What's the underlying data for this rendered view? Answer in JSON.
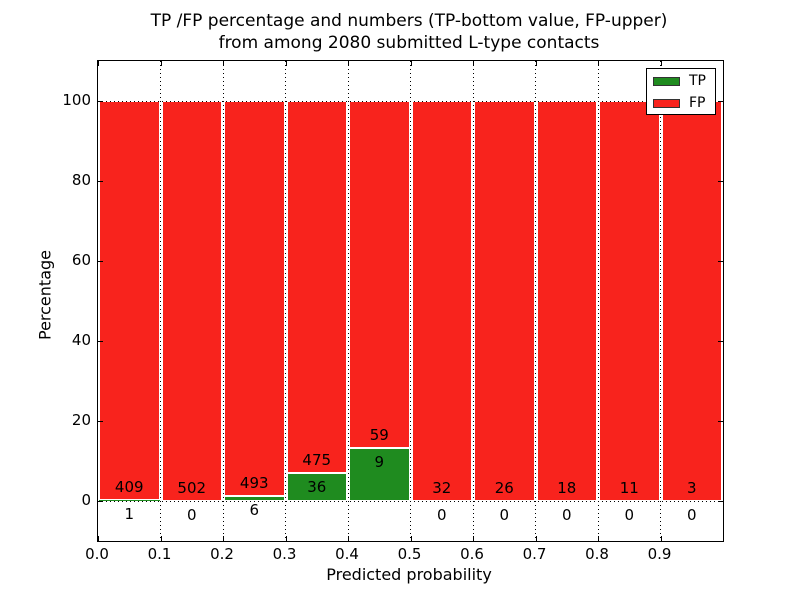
{
  "chart_data": {
    "type": "bar",
    "stacked": true,
    "title_line1": "TP /FP percentage and numbers (TP-bottom value, FP-upper)",
    "title_line2": "from among 2080 submitted L-type contacts",
    "xlabel": "Predicted probability",
    "ylabel": "Percentage",
    "total_submitted_contacts": 2080,
    "xlim": [
      0.0,
      1.0
    ],
    "ylim": [
      -10,
      110
    ],
    "x_tick_labels": [
      "0.0",
      "0.1",
      "0.2",
      "0.3",
      "0.4",
      "0.5",
      "0.6",
      "0.7",
      "0.8",
      "0.9"
    ],
    "y_tick_values": [
      0,
      20,
      40,
      60,
      80,
      100
    ],
    "grid": "dotted; vertical lines at every 0.1 bin edge, horizontal lines at 0 and 100",
    "legend": {
      "position": "upper right",
      "entries": [
        {
          "label": "TP",
          "color": "#1f8b1f"
        },
        {
          "label": "FP",
          "color": "#f8231d"
        }
      ]
    },
    "bins": [
      {
        "x_start": 0.0,
        "x_end": 0.1,
        "tp_count": 1,
        "fp_count": 409,
        "tp_pct": 0.24,
        "fp_pct": 99.76
      },
      {
        "x_start": 0.1,
        "x_end": 0.2,
        "tp_count": 0,
        "fp_count": 502,
        "tp_pct": 0.0,
        "fp_pct": 100.0
      },
      {
        "x_start": 0.2,
        "x_end": 0.3,
        "tp_count": 6,
        "fp_count": 493,
        "tp_pct": 1.2,
        "fp_pct": 98.8
      },
      {
        "x_start": 0.3,
        "x_end": 0.4,
        "tp_count": 36,
        "fp_count": 475,
        "tp_pct": 7.05,
        "fp_pct": 92.95
      },
      {
        "x_start": 0.4,
        "x_end": 0.5,
        "tp_count": 9,
        "fp_count": 59,
        "tp_pct": 13.24,
        "fp_pct": 86.76
      },
      {
        "x_start": 0.5,
        "x_end": 0.6,
        "tp_count": 0,
        "fp_count": 32,
        "tp_pct": 0.0,
        "fp_pct": 100.0
      },
      {
        "x_start": 0.6,
        "x_end": 0.7,
        "tp_count": 0,
        "fp_count": 26,
        "tp_pct": 0.0,
        "fp_pct": 100.0
      },
      {
        "x_start": 0.7,
        "x_end": 0.8,
        "tp_count": 0,
        "fp_count": 18,
        "tp_pct": 0.0,
        "fp_pct": 100.0
      },
      {
        "x_start": 0.8,
        "x_end": 0.9,
        "tp_count": 0,
        "fp_count": 11,
        "tp_pct": 0.0,
        "fp_pct": 100.0
      },
      {
        "x_start": 0.9,
        "x_end": 1.0,
        "tp_count": 0,
        "fp_count": 3,
        "tp_pct": 0.0,
        "fp_pct": 100.0
      }
    ]
  },
  "colors": {
    "tp": "#1f8b1f",
    "fp": "#f8231d",
    "frame": "#000000",
    "grid": "#000000",
    "background": "#ffffff",
    "bar_edge": "#ffffff"
  }
}
